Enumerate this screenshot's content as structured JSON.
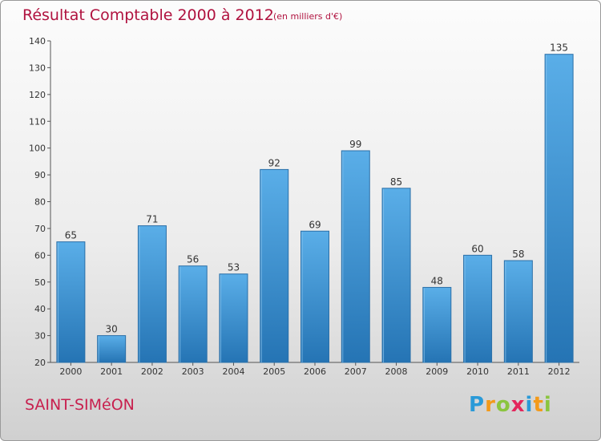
{
  "title": "Résultat Comptable 2000 à 2012",
  "subtitle": "(en milliers d'€)",
  "commune": "SAINT-SIMéON",
  "logo": {
    "letters": [
      "P",
      "r",
      "o",
      "x",
      "i",
      "t",
      "i"
    ],
    "colors": [
      "#2a9ad8",
      "#f39a1a",
      "#8bc53f",
      "#e3265c",
      "#2a9ad8",
      "#f39a1a",
      "#8bc53f"
    ]
  },
  "chart_data": {
    "type": "bar",
    "title": "Résultat Comptable 2000 à 2012",
    "ylabel": "(en milliers d'€)",
    "xlabel": "",
    "categories": [
      "2000",
      "2001",
      "2002",
      "2003",
      "2004",
      "2005",
      "2006",
      "2007",
      "2008",
      "2009",
      "2010",
      "2011",
      "2012"
    ],
    "values": [
      65,
      30,
      71,
      56,
      53,
      92,
      69,
      99,
      85,
      48,
      60,
      58,
      135
    ],
    "ylim": [
      20,
      140
    ],
    "yticks": [
      20,
      30,
      40,
      50,
      60,
      70,
      80,
      90,
      100,
      110,
      120,
      130,
      140
    ],
    "grid": false,
    "bar_color": "#3d94d6"
  }
}
